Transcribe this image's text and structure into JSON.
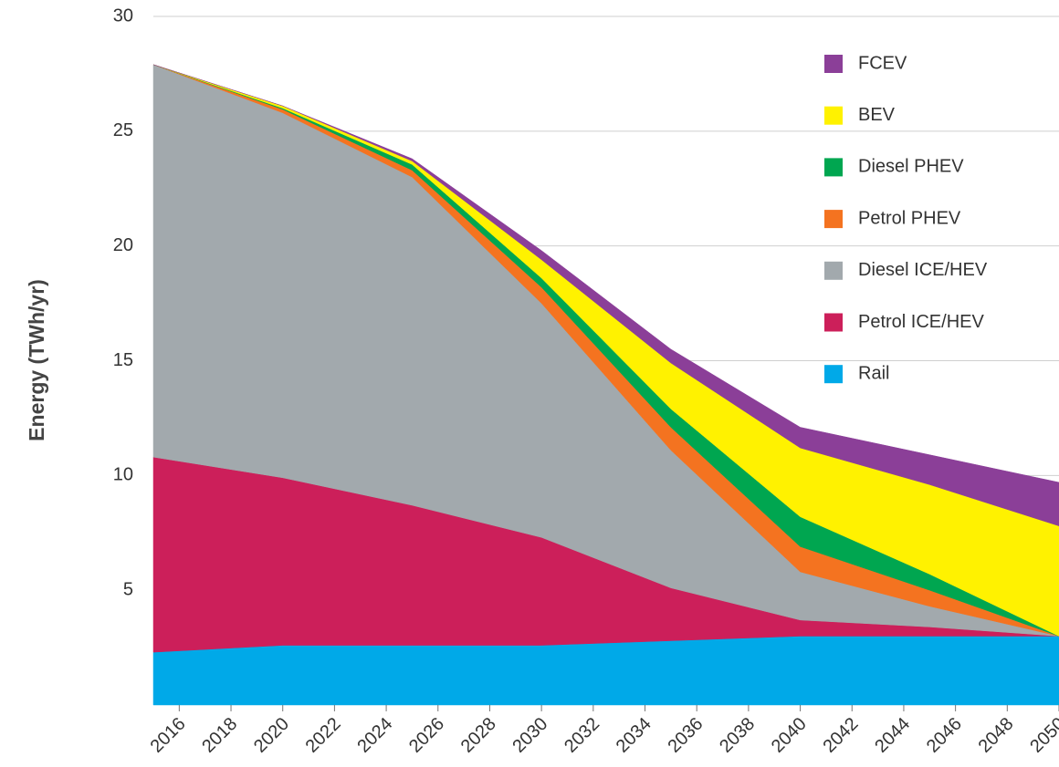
{
  "chart_data": {
    "type": "stacked_area",
    "y_label": "Energy (TWh/yr)",
    "x": [
      2015,
      2020,
      2025,
      2030,
      2035,
      2040,
      2045,
      2050
    ],
    "series": [
      {
        "name": "Rail",
        "color": "#00a9e8",
        "values": [
          2.3,
          2.6,
          2.6,
          2.6,
          2.8,
          3.0,
          3.0,
          3.0
        ]
      },
      {
        "name": "Petrol ICE/HEV",
        "color": "#cc1f5a",
        "values": [
          8.5,
          7.3,
          6.1,
          4.7,
          2.3,
          0.7,
          0.4,
          0
        ]
      },
      {
        "name": "Diesel ICE/HEV",
        "color": "#a2a9ad",
        "values": [
          17.1,
          15.9,
          14.3,
          10.2,
          6.0,
          2.1,
          0.9,
          0
        ]
      },
      {
        "name": "Petrol PHEV",
        "color": "#f47320",
        "values": [
          0,
          0.15,
          0.3,
          0.7,
          1.0,
          1.1,
          0.7,
          0
        ]
      },
      {
        "name": "Diesel PHEV",
        "color": "#00a650",
        "values": [
          0,
          0.05,
          0.25,
          0.4,
          0.8,
          1.3,
          0.7,
          0
        ]
      },
      {
        "name": "BEV",
        "color": "#fff200",
        "values": [
          0,
          0.1,
          0.15,
          0.8,
          2.0,
          3.0,
          3.9,
          4.8
        ]
      },
      {
        "name": "FCEV",
        "color": "#8b3f98",
        "values": [
          0,
          0,
          0.1,
          0.4,
          0.6,
          0.9,
          1.3,
          1.9
        ]
      }
    ],
    "xlim": [
      2015,
      2050
    ],
    "xticks": [
      2016,
      2018,
      2020,
      2022,
      2024,
      2026,
      2028,
      2030,
      2032,
      2034,
      2036,
      2038,
      2040,
      2042,
      2044,
      2046,
      2048,
      2050
    ],
    "ylim": [
      0,
      30
    ],
    "yticks": [
      5,
      10,
      15,
      20,
      25,
      30
    ],
    "grid": true,
    "legend": "top-right"
  }
}
